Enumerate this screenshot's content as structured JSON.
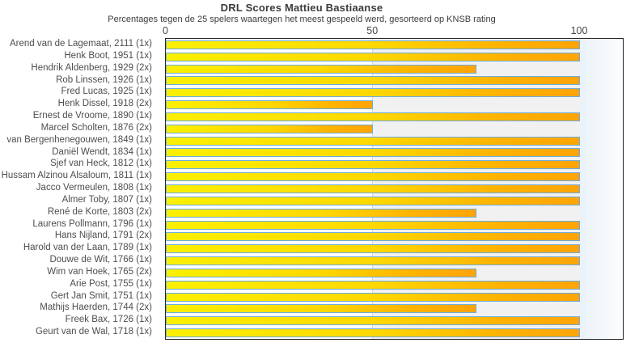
{
  "chart_data": {
    "type": "bar",
    "orientation": "horizontal",
    "title": "DRL Scores Mattieu Bastiaanse",
    "subtitle": "Percentages tegen de 25 spelers waartegen het meest gespeeld werd, gesorteerd op KNSB rating",
    "categories": [
      "Arend van de Lagemaat, 2111 (1x)",
      "Henk Boot, 1951 (1x)",
      "Hendrik Aldenberg, 1929 (2x)",
      "Rob Linssen, 1926 (1x)",
      "Fred Lucas, 1925 (1x)",
      "Henk Dissel, 1918 (2x)",
      "Ernest de Vroome, 1890 (1x)",
      "Marcel Scholten, 1876 (2x)",
      "van Bergenhenegouwen, 1849 (1x)",
      "Daniël Wendt, 1834 (1x)",
      "Sjef van Heck, 1812 (1x)",
      "Hussam Alzinou Alsaloum, 1811 (1x)",
      "Jacco Vermeulen, 1808 (1x)",
      "Almer Toby, 1807 (1x)",
      "René de Korte, 1803 (2x)",
      "Laurens Pollmann, 1796 (1x)",
      "Hans Nijland, 1791 (2x)",
      "Harold van der Laan, 1789 (1x)",
      "Douwe de Wit, 1766 (1x)",
      "Wim van Hoek, 1765 (2x)",
      "Arie Post, 1755 (1x)",
      "Gert Jan Smit, 1751 (1x)",
      "Mathijs Haerden, 1744 (2x)",
      "Freek Bax, 1726 (1x)",
      "Geurt van de Wal, 1718 (1x)"
    ],
    "values": [
      100,
      100,
      75,
      100,
      100,
      50,
      100,
      50,
      100,
      100,
      100,
      100,
      100,
      100,
      75,
      100,
      100,
      100,
      100,
      75,
      100,
      100,
      75,
      100,
      100
    ],
    "x_ticks": [
      0,
      50,
      100
    ],
    "xlim": [
      0,
      110.5
    ],
    "grid": "vertical line at 50, shaded band 50-100",
    "legend": "none",
    "colors": {
      "bar_gradient_start": "#fbf000",
      "bar_gradient_end": "#ffa408",
      "bar_border": "#6cacde",
      "band_50_100": "#f1f1f1",
      "plot_border": "#262626",
      "text": "#3c3c3c"
    }
  }
}
